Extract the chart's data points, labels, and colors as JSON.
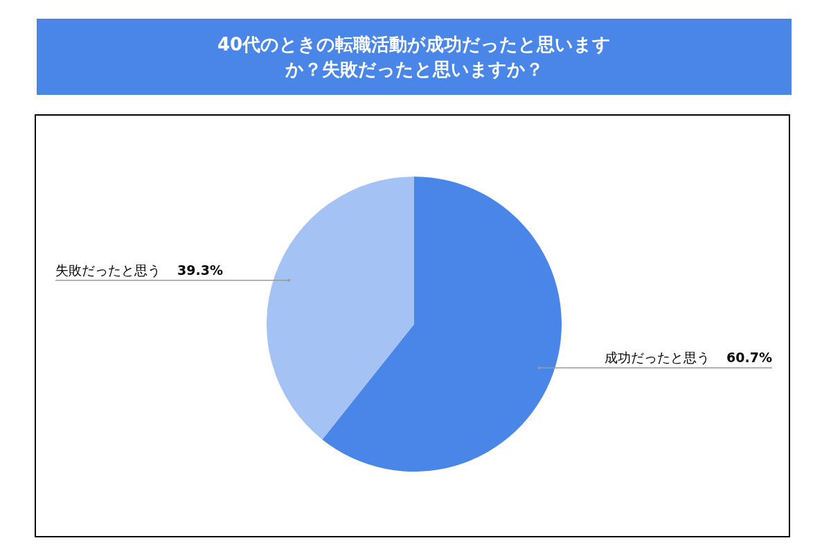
{
  "chart_data": {
    "type": "pie",
    "title": "40代のときの転職活動が成功だったと思いますか？失敗だったと思いますか？",
    "categories": [
      "成功だったと思う",
      "失敗だったと思う"
    ],
    "values": [
      60.7,
      39.3
    ],
    "colors": [
      "#4a86e8",
      "#a4c2f4"
    ],
    "value_labels": [
      "60.7%",
      "39.3%"
    ]
  }
}
